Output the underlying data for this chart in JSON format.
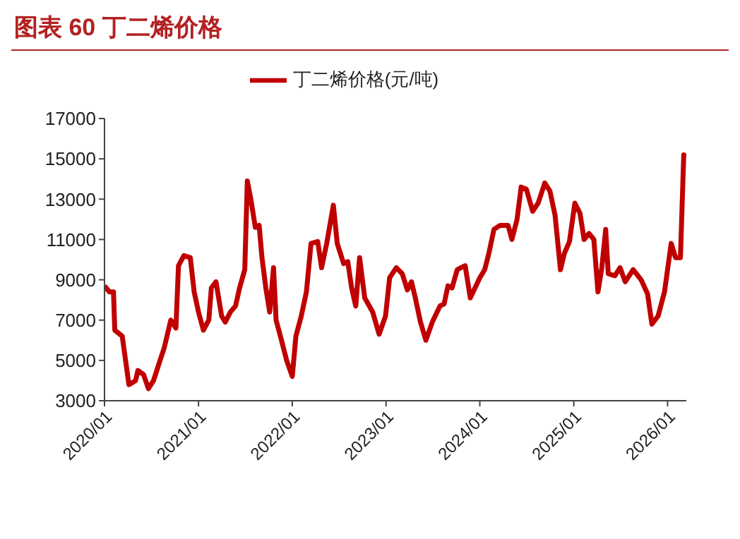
{
  "chart_data": {
    "type": "line",
    "title": "图表 60  丁二烯价格",
    "legend": "top",
    "grid": false,
    "marker": "none",
    "line_style": "solid",
    "x": [
      "2020-01-01",
      "2020-01-20",
      "2020-02-05",
      "2020-02-10",
      "2020-03-10",
      "2020-04-05",
      "2020-05-01",
      "2020-05-10",
      "2020-06-01",
      "2020-06-20",
      "2020-07-10",
      "2020-07-30",
      "2020-08-20",
      "2020-09-15",
      "2020-10-05",
      "2020-10-15",
      "2020-11-05",
      "2020-11-30",
      "2020-12-15",
      "2021-01-01",
      "2021-01-20",
      "2021-02-10",
      "2021-02-20",
      "2021-03-10",
      "2021-04-01",
      "2021-04-15",
      "2021-05-05",
      "2021-05-25",
      "2021-06-10",
      "2021-06-30",
      "2021-07-10",
      "2021-07-25",
      "2021-08-10",
      "2021-08-25",
      "2021-09-05",
      "2021-09-20",
      "2021-10-05",
      "2021-10-20",
      "2021-10-30",
      "2021-11-20",
      "2021-12-10",
      "2022-01-01",
      "2022-01-15",
      "2022-02-05",
      "2022-02-25",
      "2022-03-15",
      "2022-04-10",
      "2022-04-25",
      "2022-05-15",
      "2022-06-10",
      "2022-06-25",
      "2022-07-20",
      "2022-08-05",
      "2022-08-20",
      "2022-09-05",
      "2022-09-20",
      "2022-10-10",
      "2022-11-10",
      "2022-12-05",
      "2022-12-30",
      "2023-01-15",
      "2023-02-10",
      "2023-03-05",
      "2023-03-25",
      "2023-04-10",
      "2023-04-25",
      "2023-05-15",
      "2023-06-05",
      "2023-06-30",
      "2023-07-30",
      "2023-08-15",
      "2023-08-30",
      "2023-09-15",
      "2023-10-05",
      "2023-10-20",
      "2023-11-05",
      "2023-11-25",
      "2024-01-01",
      "2024-01-20",
      "2024-02-05",
      "2024-02-25",
      "2024-03-20",
      "2024-04-20",
      "2024-05-05",
      "2024-05-25",
      "2024-06-10",
      "2024-06-30",
      "2024-07-25",
      "2024-08-15",
      "2024-09-10",
      "2024-09-30",
      "2024-10-20",
      "2024-11-10",
      "2024-11-25",
      "2024-12-15",
      "2025-01-05",
      "2025-01-25",
      "2025-02-10",
      "2025-03-01",
      "2025-03-20",
      "2025-04-05",
      "2025-04-20",
      "2025-05-05",
      "2025-05-15",
      "2025-06-10",
      "2025-06-30",
      "2025-07-20",
      "2025-08-20",
      "2025-09-20",
      "2025-10-15",
      "2025-11-01",
      "2025-11-25",
      "2025-12-20",
      "2026-01-15",
      "2026-02-01",
      "2026-02-20",
      "2026-03-05",
      "2026-03-12"
    ],
    "series": [
      {
        "name": "丁二烯价格(元/吨)",
        "color": "#c00000",
        "values": [
          8700,
          8400,
          8400,
          6500,
          6200,
          3800,
          4000,
          4500,
          4300,
          3600,
          4000,
          4800,
          5600,
          7000,
          6600,
          9700,
          10200,
          10100,
          8400,
          7400,
          6500,
          7000,
          8600,
          8900,
          7200,
          6900,
          7400,
          7700,
          8600,
          9500,
          13900,
          12900,
          11600,
          11700,
          10100,
          8600,
          7400,
          9600,
          7000,
          6000,
          5000,
          4200,
          6200,
          7200,
          8400,
          10800,
          10900,
          9600,
          10800,
          12700,
          10800,
          9800,
          9900,
          8600,
          7700,
          10100,
          8100,
          7400,
          6300,
          7200,
          9100,
          9600,
          9300,
          8500,
          8900,
          8100,
          6900,
          6000,
          6900,
          7700,
          7800,
          8700,
          8600,
          9500,
          9600,
          9700,
          8100,
          9100,
          9500,
          10300,
          11500,
          11700,
          11700,
          11000,
          12000,
          13600,
          13500,
          12400,
          12800,
          13800,
          13400,
          12200,
          9500,
          10300,
          10900,
          12800,
          12300,
          11000,
          11300,
          11000,
          8400,
          9600,
          11500,
          9300,
          9200,
          9600,
          8900,
          9500,
          9000,
          8300,
          6800,
          7200,
          8400,
          10800,
          10100,
          10100,
          15200,
          15100
        ]
      }
    ],
    "xlim": [
      "2020-01-01",
      "2026-03-15"
    ],
    "xticks": [
      {
        "value": "2020-01-01",
        "label": "2020/01"
      },
      {
        "value": "2021-01-01",
        "label": "2021/01"
      },
      {
        "value": "2022-01-01",
        "label": "2022/01"
      },
      {
        "value": "2023-01-01",
        "label": "2023/01"
      },
      {
        "value": "2024-01-01",
        "label": "2024/01"
      },
      {
        "value": "2025-01-01",
        "label": "2025/01"
      },
      {
        "value": "2026-01-01",
        "label": "2026/01"
      }
    ],
    "ylim": [
      3000,
      17000
    ],
    "yticks": [
      3000,
      5000,
      7000,
      9000,
      11000,
      13000,
      15000,
      17000
    ]
  }
}
